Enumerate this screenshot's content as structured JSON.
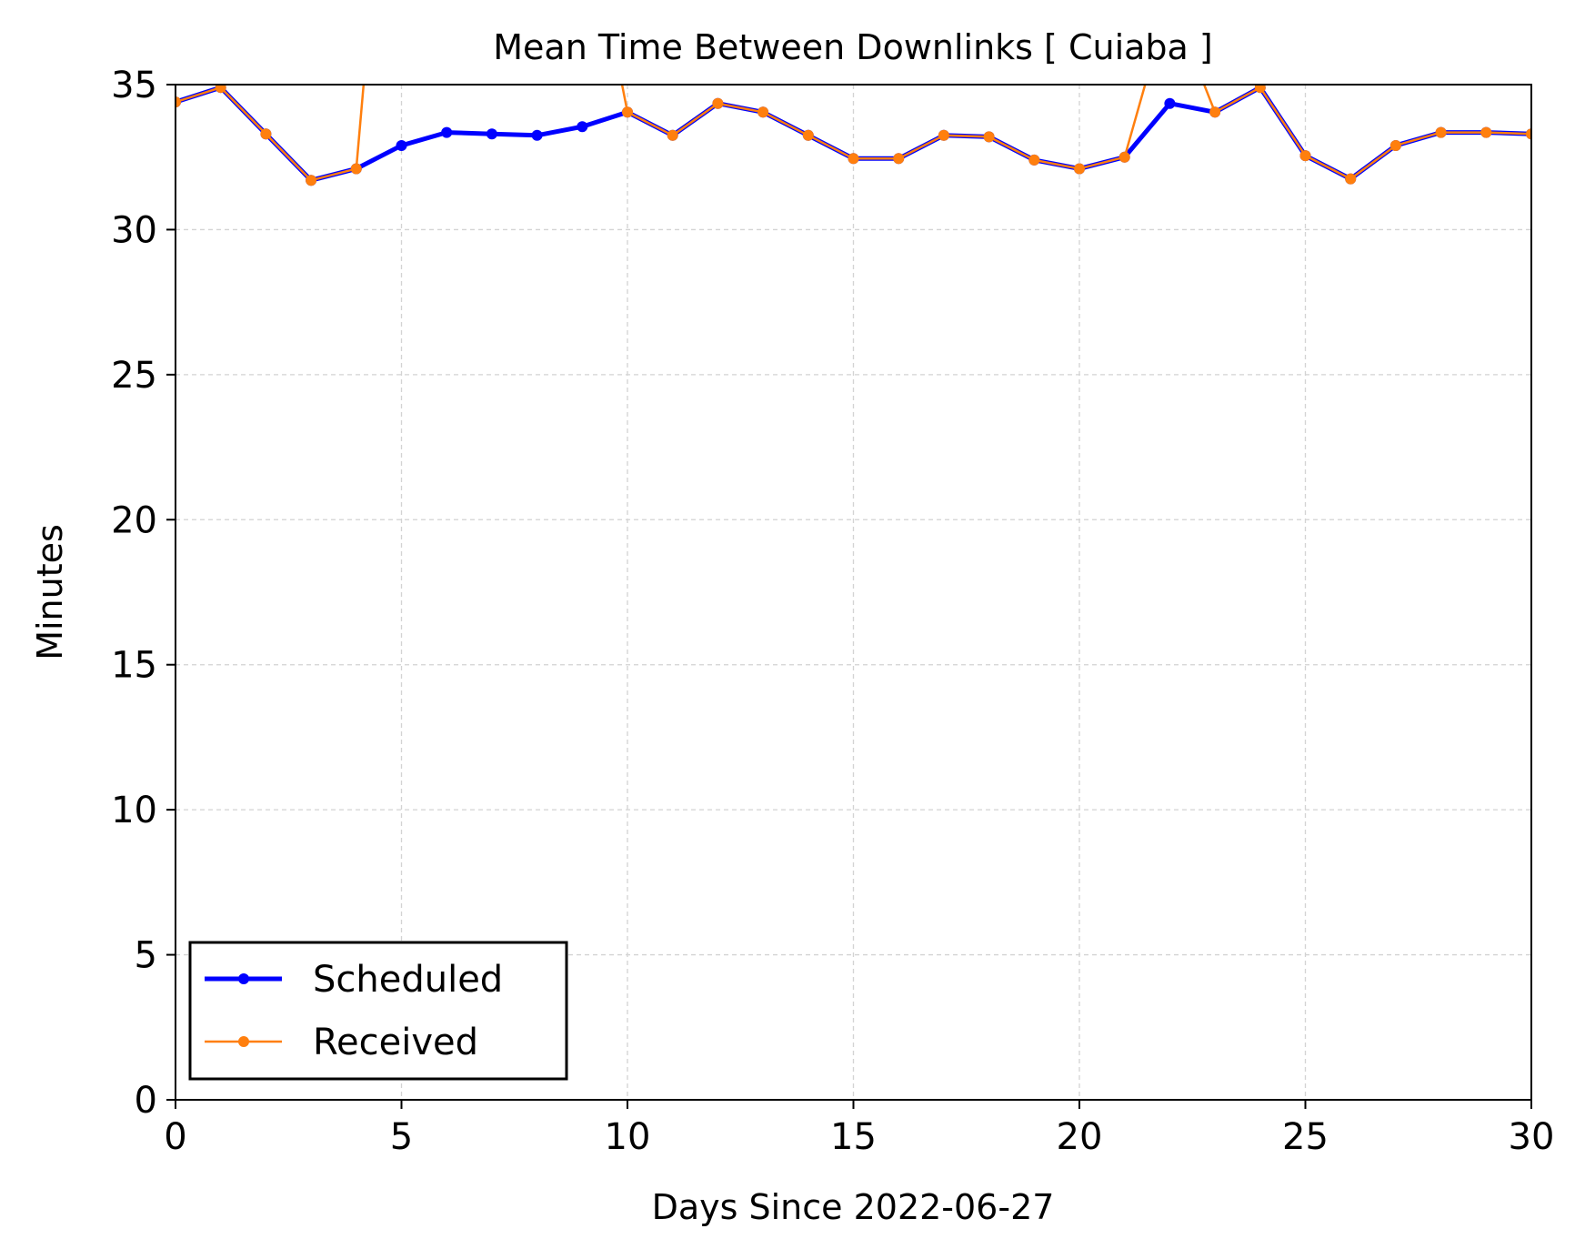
{
  "chart_data": {
    "type": "line",
    "title": "Mean Time Between Downlinks [ Cuiaba ]",
    "xlabel": "Days Since 2022-06-27",
    "ylabel": "Minutes",
    "xlim": [
      0,
      30
    ],
    "ylim": [
      0,
      35
    ],
    "xticks": [
      0,
      5,
      10,
      15,
      20,
      25,
      30
    ],
    "yticks": [
      0,
      5,
      10,
      15,
      20,
      25,
      30,
      35
    ],
    "grid": true,
    "legend_position": "lower-left",
    "x": [
      0,
      1,
      2,
      3,
      4,
      5,
      6,
      7,
      8,
      9,
      10,
      11,
      12,
      13,
      14,
      15,
      16,
      17,
      18,
      19,
      20,
      21,
      22,
      23,
      24,
      25,
      26,
      27,
      28,
      29,
      30
    ],
    "series": [
      {
        "name": "Scheduled",
        "color": "#0000ff",
        "values": [
          34.4,
          34.9,
          33.3,
          31.7,
          32.1,
          32.9,
          33.35,
          33.3,
          33.25,
          33.55,
          34.05,
          33.25,
          34.35,
          34.05,
          33.25,
          32.45,
          32.45,
          33.25,
          33.2,
          32.4,
          32.1,
          32.5,
          34.35,
          34.05,
          34.9,
          32.55,
          31.75,
          32.9,
          33.35,
          33.35,
          33.3
        ]
      },
      {
        "name": "Received",
        "color": "#ff7f0e",
        "values": [
          34.4,
          34.9,
          33.3,
          31.7,
          32.1,
          50.0,
          null,
          null,
          null,
          42.0,
          34.05,
          33.25,
          34.35,
          34.05,
          33.25,
          32.45,
          32.45,
          33.25,
          33.2,
          32.4,
          32.1,
          32.5,
          38.0,
          34.05,
          34.9,
          32.55,
          31.75,
          32.9,
          33.35,
          33.35,
          33.3
        ]
      }
    ]
  }
}
